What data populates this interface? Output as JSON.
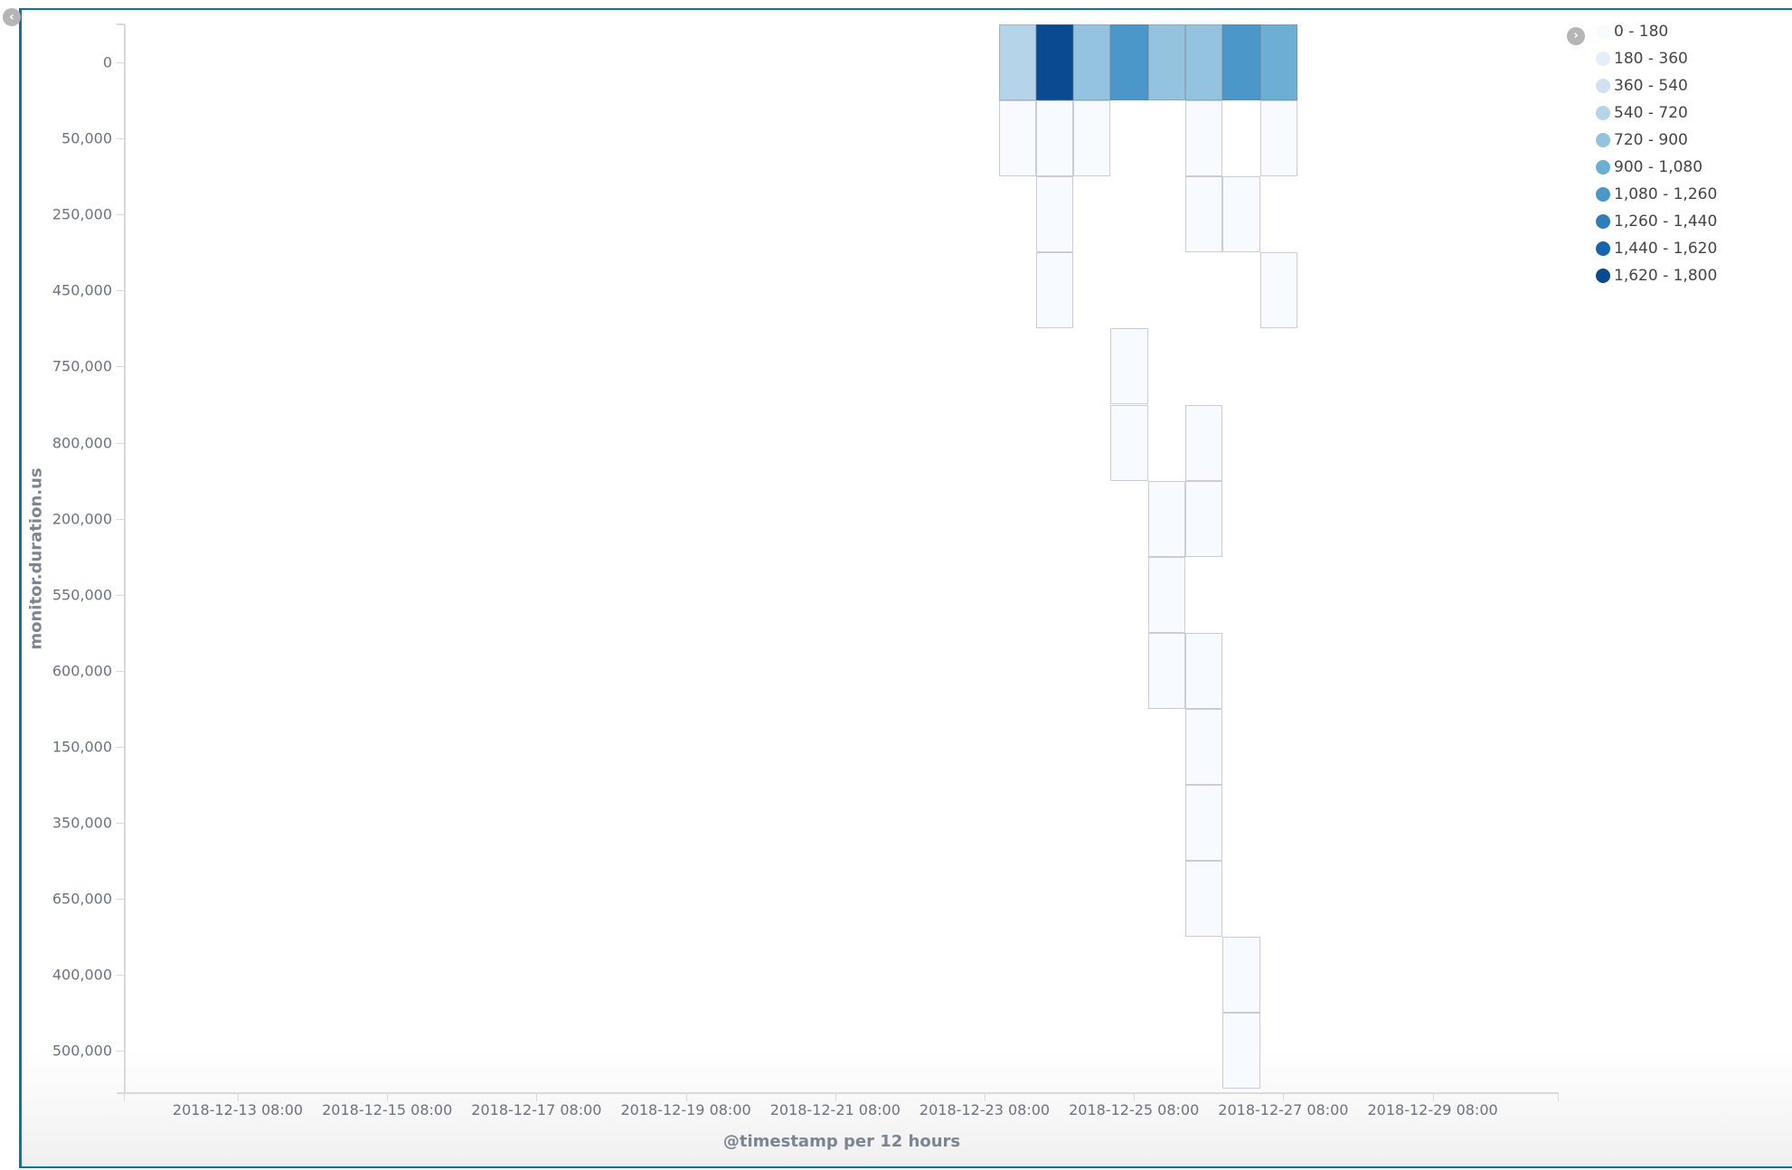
{
  "chart_data": {
    "type": "heatmap",
    "title": "",
    "xlabel": "@timestamp per 12 hours",
    "ylabel": "monitor.duration.us",
    "x_ticks": [
      "2018-12-13 08:00",
      "2018-12-15 08:00",
      "2018-12-17 08:00",
      "2018-12-19 08:00",
      "2018-12-21 08:00",
      "2018-12-23 08:00",
      "2018-12-25 08:00",
      "2018-12-27 08:00",
      "2018-12-29 08:00"
    ],
    "y_categories": [
      "0",
      "50,000",
      "250,000",
      "450,000",
      "750,000",
      "800,000",
      "200,000",
      "550,000",
      "600,000",
      "150,000",
      "350,000",
      "650,000",
      "400,000",
      "500,000"
    ],
    "x_buckets": [
      "2018-12-23 20:00",
      "2018-12-24 08:00",
      "2018-12-24 20:00",
      "2018-12-25 08:00",
      "2018-12-25 20:00",
      "2018-12-26 08:00",
      "2018-12-26 20:00",
      "2018-12-27 08:00"
    ],
    "legend": [
      {
        "label": "0 - 180",
        "color": "#f7fbff"
      },
      {
        "label": "180 - 360",
        "color": "#e3eef9"
      },
      {
        "label": "360 - 540",
        "color": "#cfe1f2"
      },
      {
        "label": "540 - 720",
        "color": "#b5d4e9"
      },
      {
        "label": "720 - 900",
        "color": "#93c3df"
      },
      {
        "label": "900 - 1,080",
        "color": "#6daed5"
      },
      {
        "label": "1,080 - 1,260",
        "color": "#4b97c9"
      },
      {
        "label": "1,260 - 1,440",
        "color": "#2f7ebc"
      },
      {
        "label": "1,440 - 1,620",
        "color": "#1864aa"
      },
      {
        "label": "1,620 - 1,800",
        "color": "#0a4a90"
      }
    ],
    "cells": [
      {
        "x": 0,
        "y": 0,
        "range": "540 - 720",
        "color": "#b5d4e9"
      },
      {
        "x": 1,
        "y": 0,
        "range": "1,620 - 1,800",
        "color": "#0a4a90"
      },
      {
        "x": 2,
        "y": 0,
        "range": "720 - 900",
        "color": "#93c3df"
      },
      {
        "x": 3,
        "y": 0,
        "range": "1,080 - 1,260",
        "color": "#4b97c9"
      },
      {
        "x": 4,
        "y": 0,
        "range": "720 - 900",
        "color": "#93c3df"
      },
      {
        "x": 5,
        "y": 0,
        "range": "720 - 900",
        "color": "#93c3df"
      },
      {
        "x": 6,
        "y": 0,
        "range": "1,080 - 1,260",
        "color": "#4b97c9"
      },
      {
        "x": 7,
        "y": 0,
        "range": "900 - 1,080",
        "color": "#6daed5"
      },
      {
        "x": 0,
        "y": 1,
        "range": "0 - 180",
        "color": "#f7fbff"
      },
      {
        "x": 1,
        "y": 1,
        "range": "0 - 180",
        "color": "#f7fbff"
      },
      {
        "x": 2,
        "y": 1,
        "range": "0 - 180",
        "color": "#f7fbff"
      },
      {
        "x": 5,
        "y": 1,
        "range": "0 - 180",
        "color": "#f7fbff"
      },
      {
        "x": 7,
        "y": 1,
        "range": "0 - 180",
        "color": "#f7fbff"
      },
      {
        "x": 1,
        "y": 2,
        "range": "0 - 180",
        "color": "#f7fbff"
      },
      {
        "x": 5,
        "y": 2,
        "range": "0 - 180",
        "color": "#f7fbff"
      },
      {
        "x": 6,
        "y": 2,
        "range": "0 - 180",
        "color": "#f7fbff"
      },
      {
        "x": 1,
        "y": 3,
        "range": "0 - 180",
        "color": "#f7fbff"
      },
      {
        "x": 7,
        "y": 3,
        "range": "0 - 180",
        "color": "#f7fbff"
      },
      {
        "x": 3,
        "y": 4,
        "range": "0 - 180",
        "color": "#f7fbff"
      },
      {
        "x": 3,
        "y": 5,
        "range": "0 - 180",
        "color": "#f7fbff"
      },
      {
        "x": 5,
        "y": 5,
        "range": "0 - 180",
        "color": "#f7fbff"
      },
      {
        "x": 4,
        "y": 6,
        "range": "0 - 180",
        "color": "#f7fbff"
      },
      {
        "x": 5,
        "y": 6,
        "range": "0 - 180",
        "color": "#f7fbff"
      },
      {
        "x": 4,
        "y": 7,
        "range": "0 - 180",
        "color": "#f7fbff"
      },
      {
        "x": 4,
        "y": 8,
        "range": "0 - 180",
        "color": "#f7fbff"
      },
      {
        "x": 5,
        "y": 8,
        "range": "0 - 180",
        "color": "#f7fbff"
      },
      {
        "x": 5,
        "y": 9,
        "range": "0 - 180",
        "color": "#f7fbff"
      },
      {
        "x": 5,
        "y": 10,
        "range": "0 - 180",
        "color": "#f7fbff"
      },
      {
        "x": 5,
        "y": 11,
        "range": "0 - 180",
        "color": "#f7fbff"
      },
      {
        "x": 6,
        "y": 12,
        "range": "0 - 180",
        "color": "#f7fbff"
      },
      {
        "x": 6,
        "y": 13,
        "range": "0 - 180",
        "color": "#f7fbff"
      }
    ],
    "grid": false,
    "legend_position": "right"
  },
  "ui": {
    "collapse_icon": "‹",
    "legend_toggle_icon": "›"
  }
}
